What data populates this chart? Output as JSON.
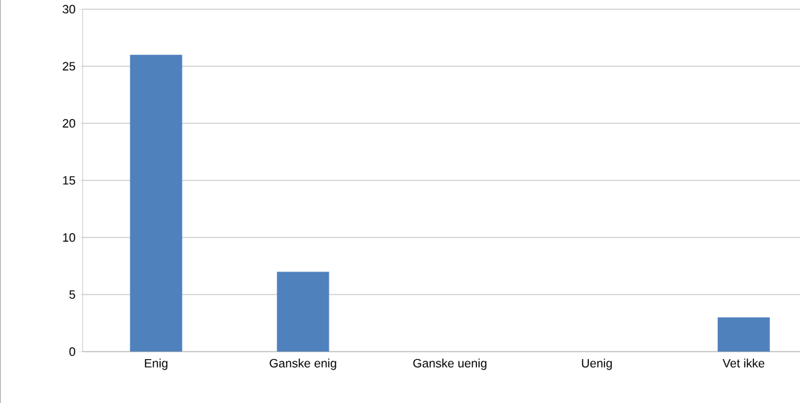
{
  "chart_data": {
    "type": "bar",
    "categories": [
      "Enig",
      "Ganske enig",
      "Ganske uenig",
      "Uenig",
      "Vet ikke"
    ],
    "values": [
      26,
      7,
      0,
      0,
      3
    ],
    "color": "#4f81bd",
    "ylim": [
      0,
      30
    ],
    "yticks": [
      0,
      5,
      10,
      15,
      20,
      25,
      30
    ],
    "grid": "y"
  }
}
